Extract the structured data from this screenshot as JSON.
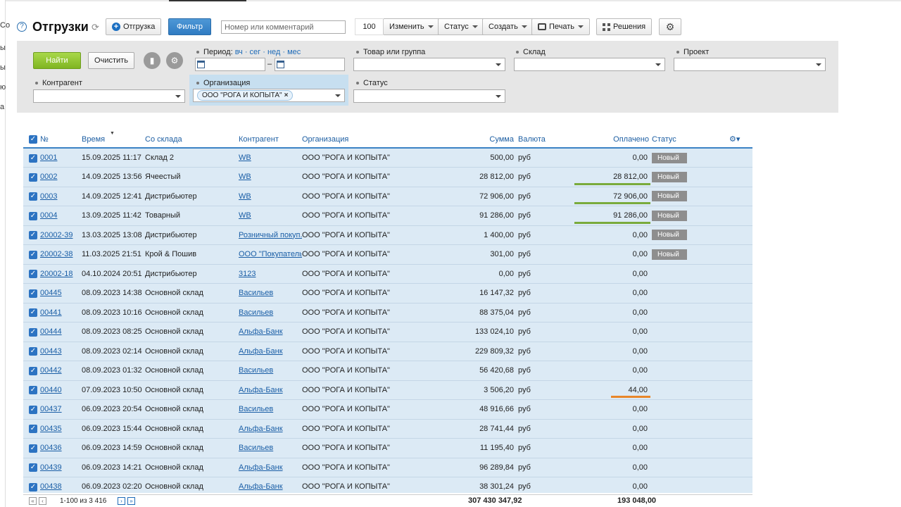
{
  "left_edge": [
    "Со",
    "ы",
    "ы",
    "ю",
    "а"
  ],
  "toolbar": {
    "title": "Отгрузки",
    "new_shipment": "Отгрузка",
    "filter": "Фильтр",
    "search_placeholder": "Номер или комментарий",
    "page_size": "100",
    "change": "Изменить",
    "status": "Статус",
    "create": "Создать",
    "print": "Печать",
    "solutions": "Решения"
  },
  "filters": {
    "find": "Найти",
    "clear": "Очистить",
    "period_label": "Период:",
    "period_links": "вч · сег · нед · мес",
    "goods_label": "Товар или группа",
    "warehouse_label": "Склад",
    "project_label": "Проект",
    "counterparty_label": "Контрагент",
    "organization_label": "Организация",
    "organization_value": "ООО \"РОГА И КОПЫТА\"",
    "status_label": "Статус",
    "range_dash": "–"
  },
  "table": {
    "headers": {
      "num": "№",
      "time": "Время",
      "from_wh": "Со склада",
      "counterparty": "Контрагент",
      "organization": "Организация",
      "sum": "Сумма",
      "currency": "Валюта",
      "paid": "Оплачено",
      "status": "Статус"
    },
    "rows": [
      {
        "num": "0001",
        "time": "15.09.2025 11:17",
        "wh": "Склад 2",
        "cp": "WB",
        "org": "ООО \"РОГА И КОПЫТА\"",
        "sum": "500,00",
        "cur": "руб",
        "paid": "0,00",
        "paid_frac": 0,
        "status": "Новый"
      },
      {
        "num": "0002",
        "time": "14.09.2025 13:56",
        "wh": "Ячеестый",
        "cp": "WB",
        "org": "ООО \"РОГА И КОПЫТА\"",
        "sum": "28 812,00",
        "cur": "руб",
        "paid": "28 812,00",
        "paid_frac": 1,
        "status": "Новый"
      },
      {
        "num": "0003",
        "time": "14.09.2025 12:41",
        "wh": "Дистрибьютер",
        "cp": "WB",
        "org": "ООО \"РОГА И КОПЫТА\"",
        "sum": "72 906,00",
        "cur": "руб",
        "paid": "72 906,00",
        "paid_frac": 1,
        "status": "Новый"
      },
      {
        "num": "0004",
        "time": "13.09.2025 11:42",
        "wh": "Товарный",
        "cp": "WB",
        "org": "ООО \"РОГА И КОПЫТА\"",
        "sum": "91 286,00",
        "cur": "руб",
        "paid": "91 286,00",
        "paid_frac": 1,
        "status": "Новый"
      },
      {
        "num": "20002-39",
        "time": "13.03.2025 13:08",
        "wh": "Дистрибьютер",
        "cp": "Розничный покуп...",
        "org": "ООО \"РОГА И КОПЫТА\"",
        "sum": "1 400,00",
        "cur": "руб",
        "paid": "0,00",
        "paid_frac": 0,
        "status": "Новый"
      },
      {
        "num": "20002-38",
        "time": "11.03.2025 21:51",
        "wh": "Крой & Пошив",
        "cp": "ООО \"Покупатель\"",
        "org": "ООО \"РОГА И КОПЫТА\"",
        "sum": "301,00",
        "cur": "руб",
        "paid": "0,00",
        "paid_frac": 0,
        "status": "Новый"
      },
      {
        "num": "20002-18",
        "time": "04.10.2024 20:51",
        "wh": "Дистрибьютер",
        "cp": "3123",
        "org": "ООО \"РОГА И КОПЫТА\"",
        "sum": "0,00",
        "cur": "руб",
        "paid": "0,00",
        "paid_frac": 0,
        "status": ""
      },
      {
        "num": "00445",
        "time": "08.09.2023 14:38",
        "wh": "Основной склад",
        "cp": "Васильев",
        "org": "ООО \"РОГА И КОПЫТА\"",
        "sum": "16 147,32",
        "cur": "руб",
        "paid": "0,00",
        "paid_frac": 0,
        "status": ""
      },
      {
        "num": "00441",
        "time": "08.09.2023 10:16",
        "wh": "Основной склад",
        "cp": "Васильев",
        "org": "ООО \"РОГА И КОПЫТА\"",
        "sum": "88 375,04",
        "cur": "руб",
        "paid": "0,00",
        "paid_frac": 0,
        "status": ""
      },
      {
        "num": "00444",
        "time": "08.09.2023 08:25",
        "wh": "Основной склад",
        "cp": "Альфа-Банк",
        "org": "ООО \"РОГА И КОПЫТА\"",
        "sum": "133 024,10",
        "cur": "руб",
        "paid": "0,00",
        "paid_frac": 0,
        "status": ""
      },
      {
        "num": "00443",
        "time": "08.09.2023 02:14",
        "wh": "Основной склад",
        "cp": "Альфа-Банк",
        "org": "ООО \"РОГА И КОПЫТА\"",
        "sum": "229 809,32",
        "cur": "руб",
        "paid": "0,00",
        "paid_frac": 0,
        "status": ""
      },
      {
        "num": "00442",
        "time": "08.09.2023 01:32",
        "wh": "Основной склад",
        "cp": "Васильев",
        "org": "ООО \"РОГА И КОПЫТА\"",
        "sum": "56 420,68",
        "cur": "руб",
        "paid": "0,00",
        "paid_frac": 0,
        "status": ""
      },
      {
        "num": "00440",
        "time": "07.09.2023 10:50",
        "wh": "Основной склад",
        "cp": "Альфа-Банк",
        "org": "ООО \"РОГА И КОПЫТА\"",
        "sum": "3 506,20",
        "cur": "руб",
        "paid": "44,00",
        "paid_frac": 0.0125,
        "status": ""
      },
      {
        "num": "00437",
        "time": "06.09.2023 20:54",
        "wh": "Основной склад",
        "cp": "Васильев",
        "org": "ООО \"РОГА И КОПЫТА\"",
        "sum": "48 916,66",
        "cur": "руб",
        "paid": "0,00",
        "paid_frac": 0,
        "status": ""
      },
      {
        "num": "00435",
        "time": "06.09.2023 15:44",
        "wh": "Основной склад",
        "cp": "Альфа-Банк",
        "org": "ООО \"РОГА И КОПЫТА\"",
        "sum": "28 741,44",
        "cur": "руб",
        "paid": "0,00",
        "paid_frac": 0,
        "status": ""
      },
      {
        "num": "00436",
        "time": "06.09.2023 14:59",
        "wh": "Основной склад",
        "cp": "Васильев",
        "org": "ООО \"РОГА И КОПЫТА\"",
        "sum": "11 195,40",
        "cur": "руб",
        "paid": "0,00",
        "paid_frac": 0,
        "status": ""
      },
      {
        "num": "00439",
        "time": "06.09.2023 14:21",
        "wh": "Основной склад",
        "cp": "Альфа-Банк",
        "org": "ООО \"РОГА И КОПЫТА\"",
        "sum": "96 289,84",
        "cur": "руб",
        "paid": "0,00",
        "paid_frac": 0,
        "status": ""
      },
      {
        "num": "00438",
        "time": "06.09.2023 02:20",
        "wh": "Основной склад",
        "cp": "Альфа-Банк",
        "org": "ООО \"РОГА И КОПЫТА\"",
        "sum": "38 301,24",
        "cur": "руб",
        "paid": "0,00",
        "paid_frac": 0,
        "status": ""
      }
    ]
  },
  "footer": {
    "pager": "1-100 из 3 416",
    "total_sum": "307 430 347,92",
    "total_paid": "193 048,00"
  },
  "colors": {
    "accent": "#2c73c2",
    "find_button": "#7fb521",
    "paid_full": "#7aab3c",
    "paid_partial": "#e8862a",
    "row_bg": "#dceaf5",
    "status_badge": "#8e8e8e"
  }
}
